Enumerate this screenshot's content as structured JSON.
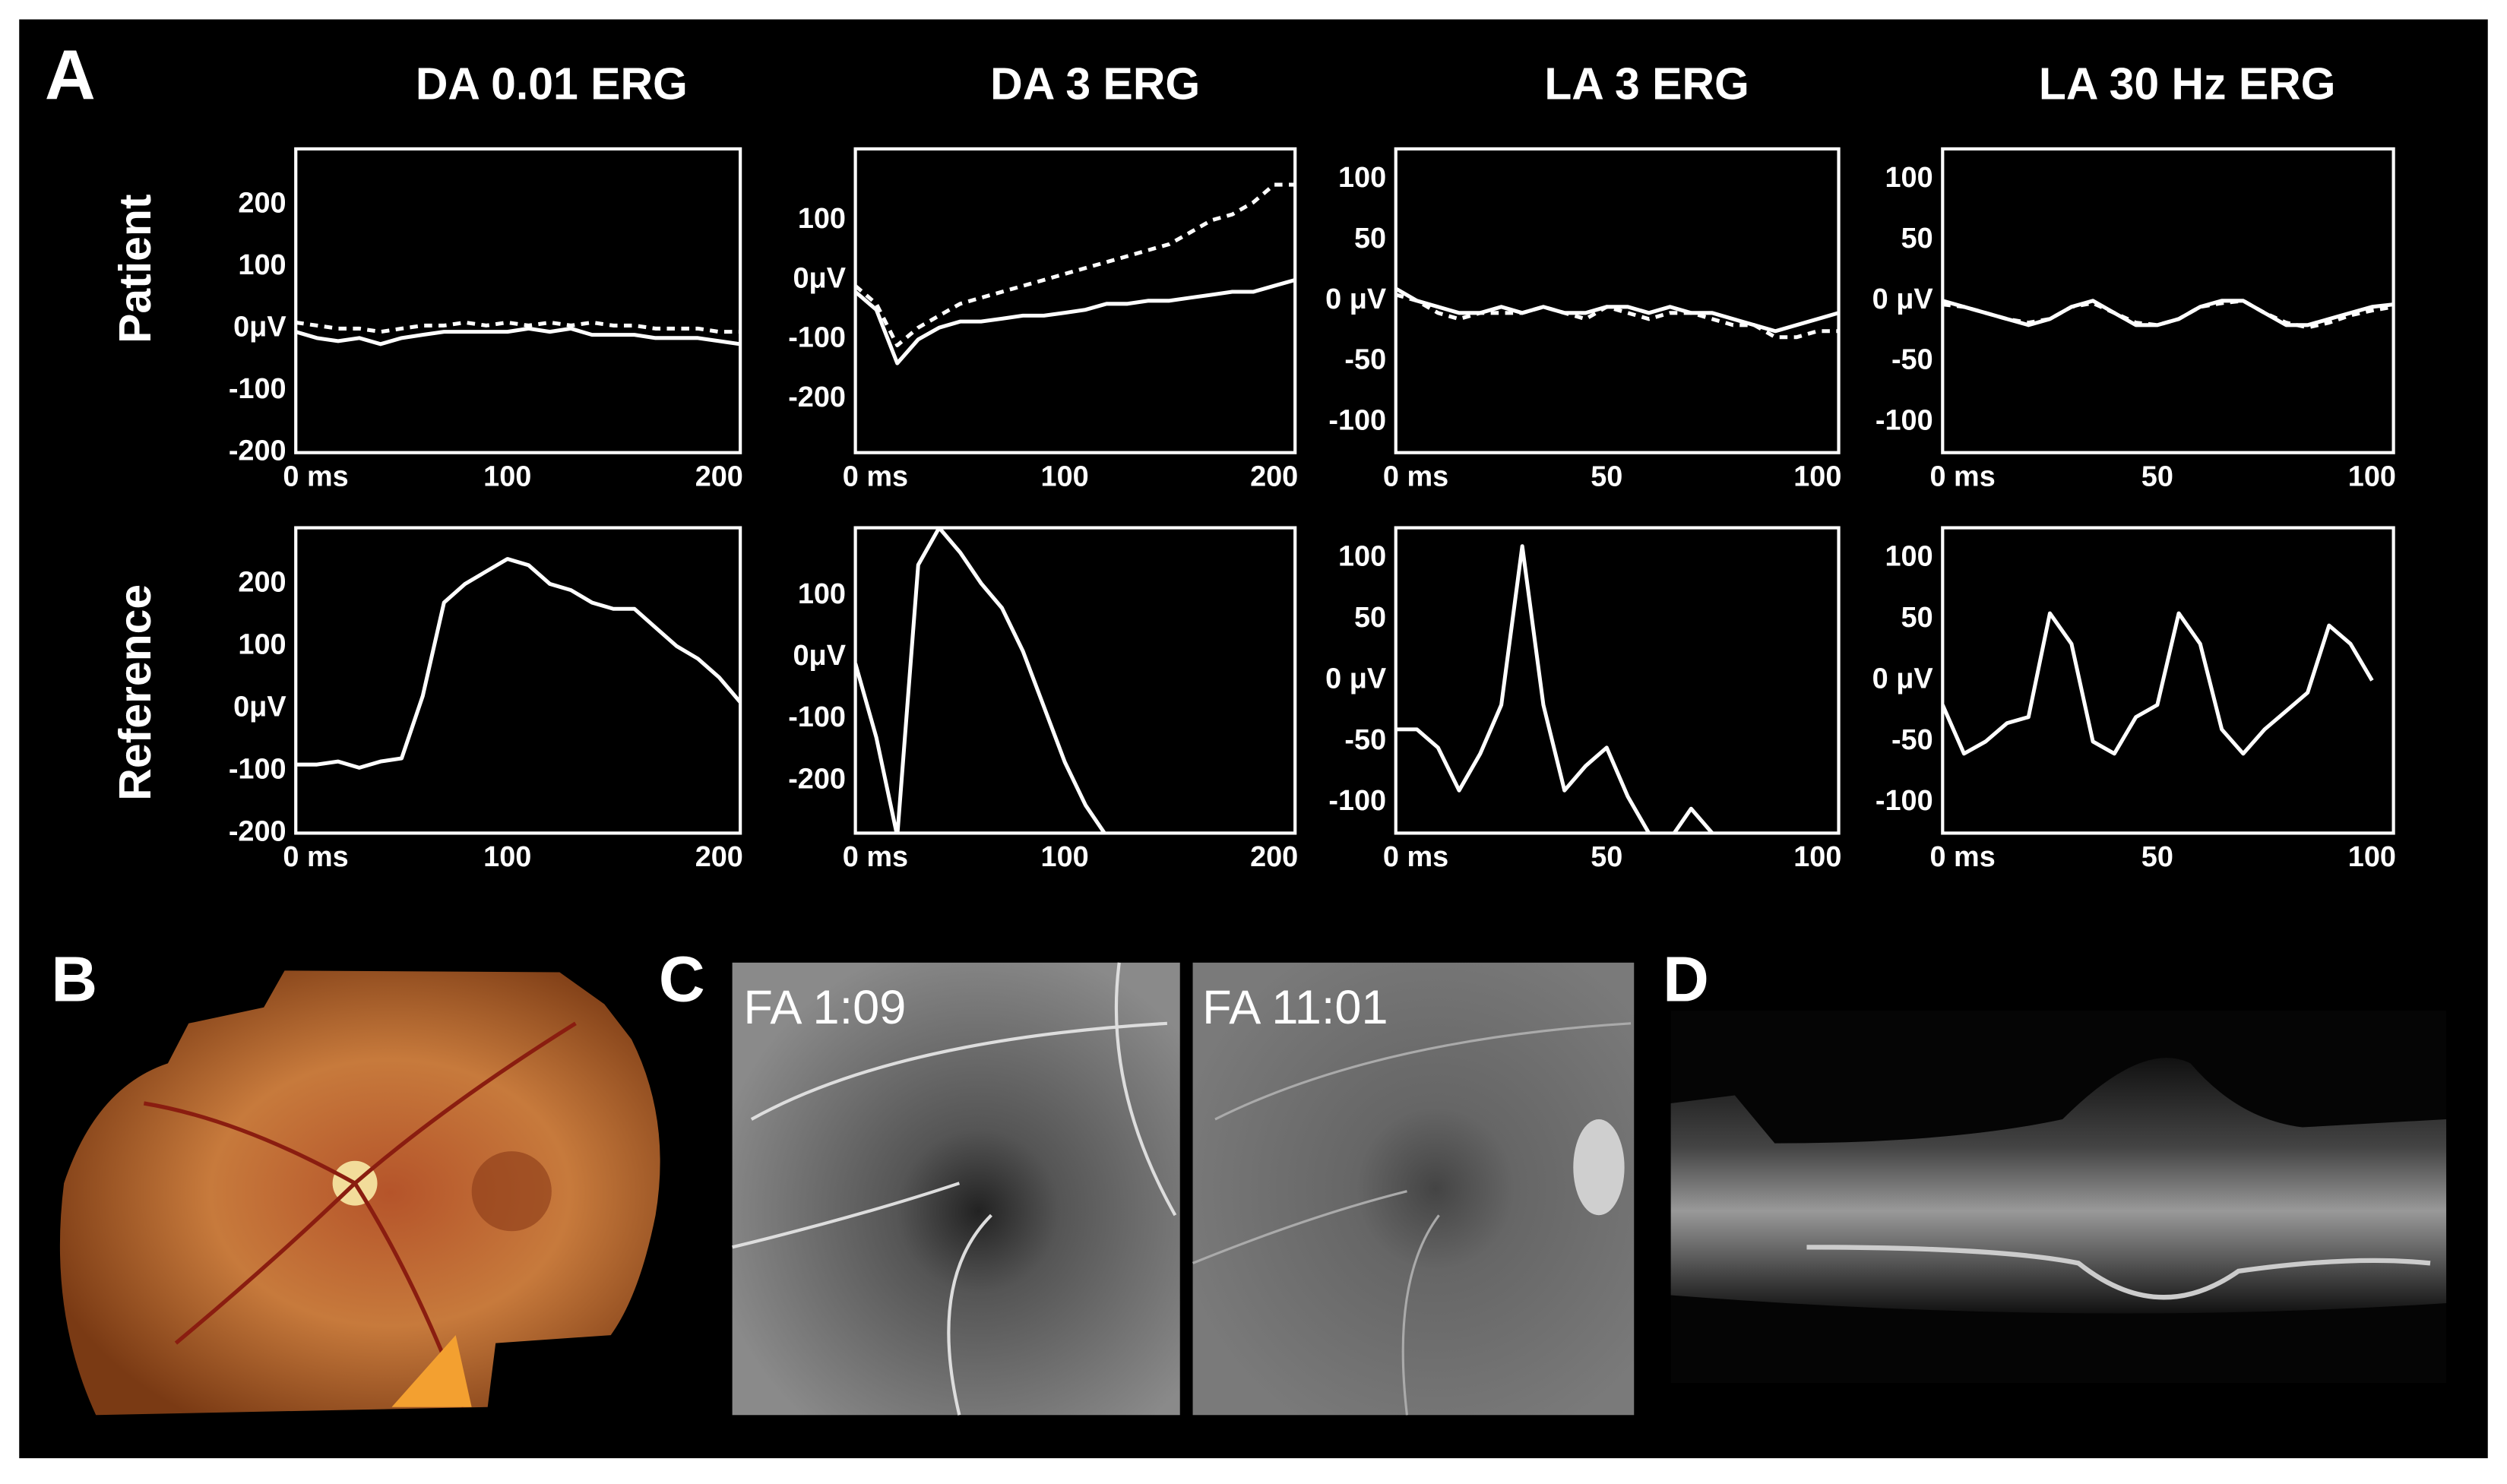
{
  "figure": {
    "panel_labels": [
      "A",
      "B",
      "C",
      "D"
    ],
    "row_labels": [
      "Patient",
      "Reference"
    ],
    "column_titles": [
      "DA 0.01 ERG",
      "DA 3 ERG",
      "LA 3 ERG",
      "LA 30 Hz ERG"
    ],
    "image_labels": [
      "FA 1:09",
      "FA 11:01"
    ]
  },
  "chart_data": [
    {
      "type": "line",
      "x": [
        0,
        10,
        20,
        30,
        40,
        50,
        60,
        70,
        80,
        90,
        100,
        110,
        120,
        130,
        140,
        150,
        160,
        170,
        180,
        190,
        200,
        210
      ],
      "xlim": [
        0,
        210
      ],
      "ylim": [
        -200,
        290
      ],
      "xticks": [
        {
          "value": 0,
          "label": "0 ms"
        },
        100,
        200
      ],
      "yticks": [
        200,
        100,
        {
          "value": 0,
          "label": "0μV"
        },
        -100,
        -200
      ],
      "series": [
        {
          "color": "#ffffff",
          "dashed": false,
          "values": [
            -5,
            -15,
            -20,
            -15,
            -25,
            -15,
            -10,
            -5,
            -5,
            -5,
            -5,
            0,
            -5,
            0,
            -10,
            -10,
            -10,
            -15,
            -15,
            -15,
            -20,
            -25
          ]
        },
        {
          "color": "#ffffff",
          "dashed": true,
          "values": [
            10,
            5,
            0,
            0,
            -5,
            0,
            5,
            5,
            10,
            5,
            10,
            5,
            10,
            5,
            10,
            5,
            5,
            0,
            0,
            0,
            -5,
            -5
          ]
        }
      ]
    },
    {
      "type": "line",
      "x": [
        0,
        10,
        20,
        30,
        40,
        50,
        60,
        70,
        80,
        90,
        100,
        110,
        120,
        130,
        140,
        150,
        160,
        170,
        180,
        190,
        200,
        210
      ],
      "xlim": [
        0,
        210
      ],
      "ylim": [
        -290,
        220
      ],
      "xticks": [
        {
          "value": 0,
          "label": "0 ms"
        },
        100,
        200
      ],
      "yticks": [
        100,
        {
          "value": 0,
          "label": "0μV"
        },
        -100,
        -200
      ],
      "series": [
        {
          "color": "#ffffff",
          "dashed": false,
          "values": [
            -20,
            -50,
            -140,
            -100,
            -80,
            -70,
            -70,
            -65,
            -60,
            -60,
            -55,
            -50,
            -40,
            -40,
            -35,
            -35,
            -30,
            -25,
            -20,
            -20,
            -10,
            0
          ]
        },
        {
          "color": "#ffffff",
          "dashed": true,
          "values": [
            -10,
            -40,
            -110,
            -80,
            -60,
            -40,
            -30,
            -20,
            -10,
            0,
            10,
            20,
            30,
            40,
            50,
            60,
            80,
            100,
            110,
            130,
            160,
            160
          ]
        }
      ]
    },
    {
      "type": "line",
      "x": [
        0,
        5,
        10,
        15,
        20,
        25,
        30,
        35,
        40,
        45,
        50,
        55,
        60,
        65,
        70,
        75,
        80,
        85,
        90,
        95,
        100,
        105
      ],
      "xlim": [
        0,
        105
      ],
      "ylim": [
        -125,
        125
      ],
      "xticks": [
        {
          "value": 0,
          "label": "0 ms"
        },
        50,
        100
      ],
      "yticks": [
        100,
        50,
        {
          "value": 0,
          "label": "0 μV"
        },
        -50,
        -100
      ],
      "series": [
        {
          "color": "#ffffff",
          "dashed": false,
          "values": [
            10,
            0,
            -5,
            -10,
            -10,
            -5,
            -10,
            -5,
            -10,
            -10,
            -5,
            -5,
            -10,
            -5,
            -10,
            -10,
            -15,
            -20,
            -25,
            -20,
            -15,
            -10
          ]
        },
        {
          "color": "#ffffff",
          "dashed": true,
          "values": [
            5,
            0,
            -10,
            -15,
            -10,
            -10,
            -10,
            -5,
            -10,
            -15,
            -5,
            -10,
            -15,
            -10,
            -10,
            -15,
            -20,
            -20,
            -30,
            -30,
            -25,
            -25
          ]
        }
      ]
    },
    {
      "type": "line",
      "x": [
        0,
        5,
        10,
        15,
        20,
        25,
        30,
        35,
        40,
        45,
        50,
        55,
        60,
        65,
        70,
        75,
        80,
        85,
        90,
        95,
        100,
        105
      ],
      "xlim": [
        0,
        105
      ],
      "ylim": [
        -125,
        125
      ],
      "xticks": [
        {
          "value": 0,
          "label": "0 ms"
        },
        50,
        100
      ],
      "yticks": [
        100,
        50,
        {
          "value": 0,
          "label": "0 μV"
        },
        -50,
        -100
      ],
      "series": [
        {
          "color": "#ffffff",
          "dashed": false,
          "values": [
            0,
            -5,
            -10,
            -15,
            -20,
            -15,
            -5,
            0,
            -10,
            -20,
            -20,
            -15,
            -5,
            0,
            0,
            -10,
            -20,
            -20,
            -15,
            -10,
            -5,
            -3
          ]
        },
        {
          "color": "#ffffff",
          "dashed": true,
          "values": [
            -3,
            -5,
            -10,
            -15,
            -18,
            -15,
            -5,
            -2,
            -10,
            -18,
            -20,
            -15,
            -5,
            -2,
            0,
            -10,
            -18,
            -22,
            -18,
            -12,
            -8,
            -5
          ]
        }
      ]
    },
    {
      "type": "line",
      "x": [
        0,
        10,
        20,
        30,
        40,
        50,
        60,
        70,
        80,
        90,
        100,
        110,
        120,
        130,
        140,
        150,
        160,
        170,
        180,
        190,
        200,
        210
      ],
      "xlim": [
        0,
        210
      ],
      "ylim": [
        -200,
        290
      ],
      "xticks": [
        {
          "value": 0,
          "label": "0 ms"
        },
        100,
        200
      ],
      "yticks": [
        200,
        100,
        {
          "value": 0,
          "label": "0μV"
        },
        -100,
        -200
      ],
      "series": [
        {
          "color": "#ffffff",
          "dashed": false,
          "values": [
            -90,
            -90,
            -85,
            -95,
            -85,
            -80,
            20,
            170,
            200,
            220,
            240,
            230,
            200,
            190,
            170,
            160,
            160,
            130,
            100,
            80,
            50,
            10
          ]
        }
      ]
    },
    {
      "type": "line",
      "x": [
        0,
        10,
        20,
        30,
        40,
        50,
        60,
        70,
        80,
        90,
        100,
        110,
        120,
        130,
        140,
        150,
        160,
        170,
        180,
        190,
        200,
        210
      ],
      "xlim": [
        0,
        210
      ],
      "ylim": [
        -285,
        210
      ],
      "xticks": [
        {
          "value": 0,
          "label": "0 ms"
        },
        100,
        200
      ],
      "yticks": [
        100,
        {
          "value": 0,
          "label": "0μV"
        },
        -100,
        -200
      ],
      "series": [
        {
          "color": "#ffffff",
          "dashed": false,
          "values": [
            -10,
            -130,
            -290,
            150,
            210,
            170,
            120,
            80,
            10,
            -80,
            -170,
            -240,
            -290,
            null,
            null,
            null,
            null,
            null,
            null,
            null,
            null,
            null
          ]
        }
      ]
    },
    {
      "type": "line",
      "x": [
        0,
        5,
        10,
        15,
        20,
        25,
        30,
        35,
        40,
        45,
        50,
        55,
        60,
        65,
        70,
        75,
        80,
        85,
        90,
        95,
        100,
        105
      ],
      "xlim": [
        0,
        105
      ],
      "ylim": [
        -125,
        125
      ],
      "xticks": [
        {
          "value": 0,
          "label": "0 ms"
        },
        50,
        100
      ],
      "yticks": [
        100,
        50,
        {
          "value": 0,
          "label": "0 μV"
        },
        -50,
        -100
      ],
      "series": [
        {
          "color": "#ffffff",
          "dashed": false,
          "values": [
            -40,
            -40,
            -55,
            -90,
            -60,
            -20,
            110,
            -20,
            -90,
            -70,
            -55,
            -95,
            -125,
            -130,
            -105,
            -125,
            null,
            null,
            null,
            null,
            null,
            null
          ]
        }
      ]
    },
    {
      "type": "line",
      "x": [
        0,
        5,
        10,
        15,
        20,
        25,
        30,
        35,
        40,
        45,
        50,
        55,
        60,
        65,
        70,
        75,
        80,
        85,
        90,
        95,
        100,
        105
      ],
      "xlim": [
        0,
        105
      ],
      "ylim": [
        -125,
        125
      ],
      "xticks": [
        {
          "value": 0,
          "label": "0 ms"
        },
        50,
        100
      ],
      "yticks": [
        100,
        50,
        {
          "value": 0,
          "label": "0 μV"
        },
        -50,
        -100
      ],
      "series": [
        {
          "color": "#ffffff",
          "dashed": false,
          "values": [
            -20,
            -60,
            -50,
            -35,
            -30,
            55,
            30,
            -50,
            -60,
            -30,
            -20,
            55,
            30,
            -40,
            -60,
            -40,
            -25,
            -10,
            45,
            30,
            0,
            null
          ]
        }
      ]
    }
  ]
}
